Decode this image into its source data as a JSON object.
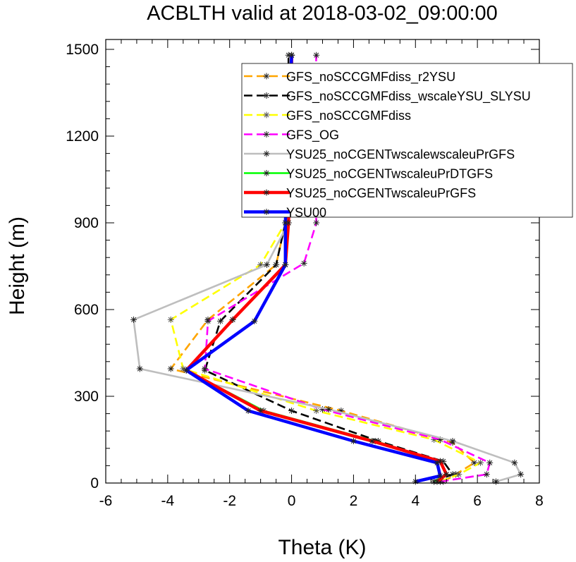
{
  "chart_data": {
    "type": "line",
    "title": "ACBLTH valid at 2018-03-02_09:00:00",
    "xlabel": "Theta (K)",
    "ylabel": "Height (m)",
    "xlim": [
      -6,
      8
    ],
    "ylim": [
      0,
      1500
    ],
    "xticks": [
      -6,
      -4,
      -2,
      0,
      2,
      4,
      6,
      8
    ],
    "yticks": [
      0,
      300,
      600,
      900,
      1200,
      1500
    ],
    "legend_position": "top-right",
    "series": [
      {
        "name": "GFS_noSCCGMFdiss_r2YSU",
        "color": "#ffa500",
        "dash": "dashed",
        "points": [
          [
            4.9,
            5
          ],
          [
            5.3,
            30
          ],
          [
            5.9,
            70
          ],
          [
            5.2,
            140
          ],
          [
            1.6,
            250
          ],
          [
            -3.9,
            395
          ],
          [
            -2.7,
            565
          ],
          [
            -0.5,
            755
          ],
          [
            -0.2,
            900
          ],
          [
            -0.1,
            1200
          ],
          [
            0.0,
            1480
          ]
        ]
      },
      {
        "name": "GFS_noSCCGMFdiss_wscaleYSU_SLYSU",
        "color": "#000000",
        "dash": "dashed",
        "points": [
          [
            4.6,
            5
          ],
          [
            5.2,
            30
          ],
          [
            4.9,
            75
          ],
          [
            2.8,
            145
          ],
          [
            0.0,
            250
          ],
          [
            -2.8,
            390
          ],
          [
            -2.3,
            560
          ],
          [
            -0.5,
            755
          ],
          [
            -0.2,
            900
          ],
          [
            -0.1,
            1200
          ],
          [
            -0.1,
            1480
          ]
        ]
      },
      {
        "name": "GFS_noSCCGMFdiss",
        "color": "#ffff00",
        "dash": "dashed",
        "points": [
          [
            4.8,
            5
          ],
          [
            5.4,
            30
          ],
          [
            6.1,
            70
          ],
          [
            4.6,
            150
          ],
          [
            0.8,
            250
          ],
          [
            -3.5,
            395
          ],
          [
            -3.9,
            565
          ],
          [
            -1.0,
            755
          ],
          [
            -0.2,
            900
          ],
          [
            -0.1,
            1200
          ],
          [
            0.0,
            1480
          ]
        ]
      },
      {
        "name": "GFS_OG",
        "color": "#ff00ff",
        "dash": "dashed",
        "points": [
          [
            4.8,
            5
          ],
          [
            6.3,
            30
          ],
          [
            6.4,
            70
          ],
          [
            4.8,
            150
          ],
          [
            1.0,
            255
          ],
          [
            -2.8,
            395
          ],
          [
            -2.7,
            560
          ],
          [
            0.4,
            760
          ],
          [
            0.8,
            900
          ],
          [
            0.7,
            1200
          ],
          [
            0.8,
            1480
          ]
        ]
      },
      {
        "name": "YSU25_noCGENTwscalewscaleuPrGFS",
        "color": "#bebebe",
        "dash": "solid",
        "points": [
          [
            6.6,
            5
          ],
          [
            7.4,
            30
          ],
          [
            7.2,
            70
          ],
          [
            5.2,
            145
          ],
          [
            1.2,
            255
          ],
          [
            -4.9,
            395
          ],
          [
            -5.1,
            565
          ],
          [
            -0.8,
            755
          ],
          [
            -0.1,
            900
          ],
          [
            0.0,
            1200
          ],
          [
            0.0,
            1480
          ]
        ]
      },
      {
        "name": "YSU25_noCGENTwscaleuPrDTGFS",
        "color": "#00ff00",
        "dash": "solid",
        "points": [
          [
            4.6,
            5
          ],
          [
            5.0,
            30
          ],
          [
            4.8,
            75
          ],
          [
            2.7,
            145
          ],
          [
            -0.9,
            250
          ],
          [
            -3.4,
            390
          ],
          [
            -1.9,
            565
          ],
          [
            -0.2,
            755
          ],
          [
            -0.1,
            900
          ],
          [
            0.0,
            1200
          ],
          [
            0.0,
            1480
          ]
        ]
      },
      {
        "name": "YSU25_noCGENTwscaleuPrGFS",
        "color": "#ff0000",
        "dash": "solid",
        "points": [
          [
            4.7,
            5
          ],
          [
            5.0,
            30
          ],
          [
            4.8,
            75
          ],
          [
            2.6,
            145
          ],
          [
            -1.0,
            250
          ],
          [
            -3.4,
            390
          ],
          [
            -1.9,
            565
          ],
          [
            -0.2,
            755
          ],
          [
            -0.1,
            900
          ],
          [
            0.0,
            1200
          ],
          [
            0.0,
            1480
          ]
        ]
      },
      {
        "name": "YSU00",
        "color": "#0000ff",
        "dash": "solid",
        "points": [
          [
            4.0,
            5
          ],
          [
            4.8,
            25
          ],
          [
            4.7,
            70
          ],
          [
            2.0,
            145
          ],
          [
            -1.4,
            250
          ],
          [
            -3.4,
            390
          ],
          [
            -1.2,
            560
          ],
          [
            -0.2,
            755
          ],
          [
            -0.2,
            900
          ],
          [
            -0.1,
            1200
          ],
          [
            0.0,
            1480
          ]
        ]
      }
    ]
  }
}
